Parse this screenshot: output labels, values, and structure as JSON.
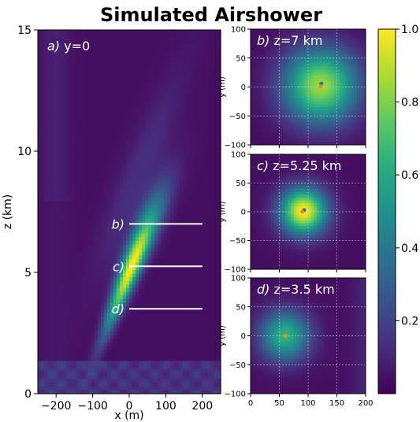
{
  "chart_data": {
    "type": "heatmap",
    "title": "Simulated Airshower",
    "colormap": "viridis",
    "colorbar": {
      "range": [
        0,
        1.0
      ],
      "ticks": [
        0.2,
        0.4,
        0.6,
        0.8,
        1.0
      ],
      "tick_labels": [
        "0.2",
        "0.4",
        "0.6",
        "0.8",
        "1.0"
      ]
    },
    "main_panel": {
      "label_italic": "a)",
      "label_rest": " y=0",
      "xlabel": "x (m)",
      "ylabel": "z (km)",
      "xlim": [
        -250,
        250
      ],
      "ylim": [
        0,
        15
      ],
      "xticks": [
        -200,
        -100,
        0,
        100,
        200
      ],
      "xtick_labels": [
        "−200",
        "−100",
        "0",
        "100",
        "200"
      ],
      "yticks": [
        0,
        5,
        10,
        15
      ],
      "ytick_labels": [
        "0",
        "5",
        "10",
        "15"
      ],
      "shower_axis": {
        "x_at_z0": -130,
        "slope_m_per_km": 26,
        "peak_z_km": 5.3
      },
      "cut_lines": [
        {
          "label": "b)",
          "z_km": 7.0,
          "x_range": [
            0,
            200
          ]
        },
        {
          "label": "c)",
          "z_km": 5.25,
          "x_range": [
            0,
            200
          ]
        },
        {
          "label": "d)",
          "z_km": 3.5,
          "x_range": [
            0,
            200
          ]
        }
      ]
    },
    "slices": [
      {
        "label_italic": "b)",
        "label_rest": " z=7 km",
        "center_x": 122,
        "center_y": 2,
        "spread": 45,
        "markers": [
          {
            "x": 123,
            "y": 6,
            "color": "#1f77b4"
          },
          {
            "x": 122,
            "y": 1,
            "color": "#ff7f0e"
          }
        ]
      },
      {
        "label_italic": "c)",
        "label_rest": " z=5.25 km",
        "center_x": 92,
        "center_y": 1,
        "spread": 28,
        "markers": [
          {
            "x": 93,
            "y": 3,
            "color": "#1f77b4"
          },
          {
            "x": 90,
            "y": 0,
            "color": "#ff7f0e"
          }
        ]
      },
      {
        "label_italic": "d)",
        "label_rest": " z=3.5 km",
        "center_x": 60,
        "center_y": 0,
        "spread": 30,
        "markers": [
          {
            "x": 61,
            "y": 0,
            "color": "#ff7f0e"
          }
        ]
      }
    ],
    "slice_axes": {
      "ylabel": "y (m)",
      "xlim": [
        0,
        200
      ],
      "ylim": [
        -100,
        100
      ],
      "xticks": [
        0,
        50,
        100,
        150,
        200
      ],
      "xtick_labels": [
        "0",
        "50",
        "100",
        "150",
        "200"
      ],
      "yticks": [
        -100,
        -50,
        0,
        50,
        100
      ],
      "ytick_labels": [
        "−100",
        "−50",
        "0",
        "50",
        "100"
      ],
      "grid": true
    }
  }
}
